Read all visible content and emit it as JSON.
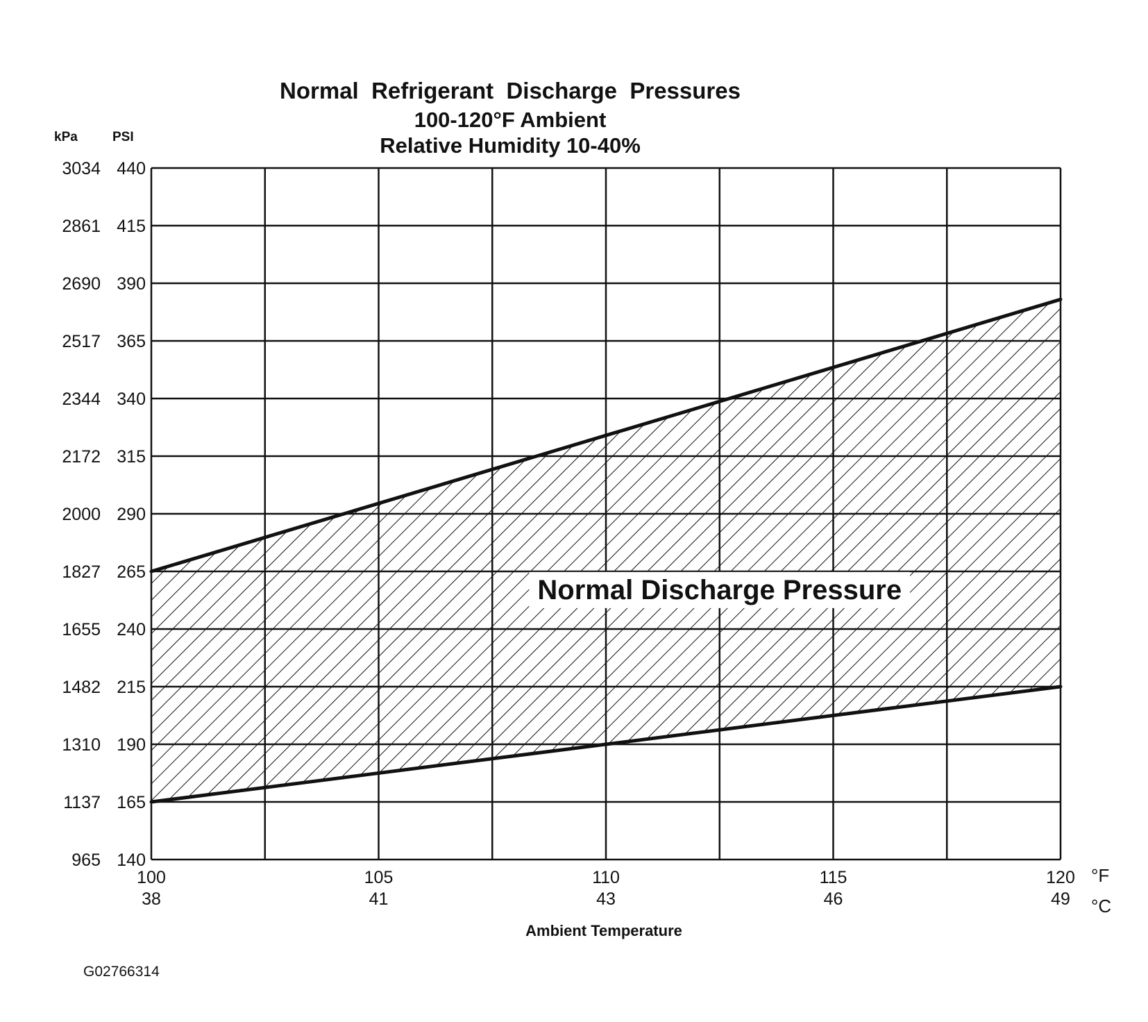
{
  "chart_data": {
    "type": "area",
    "title": "Normal  Refrigerant  Discharge  Pressures",
    "subtitle_lines": [
      "100-120°F Ambient",
      "Relative Humidity 10-40%"
    ],
    "xlabel": "Ambient Temperature",
    "x_unit_f": "°F",
    "x_unit_c": "°C",
    "y_unit_kpa": "kPa",
    "y_unit_psi": "PSI",
    "xlim": [
      100,
      120
    ],
    "ylim": [
      140,
      440
    ],
    "grid": true,
    "x_gridlines": [
      100,
      102.5,
      105,
      107.5,
      110,
      112.5,
      115,
      117.5,
      120
    ],
    "x_ticks": [
      {
        "f": "100",
        "c": "38",
        "value": 100
      },
      {
        "f": "105",
        "c": "41",
        "value": 105
      },
      {
        "f": "110",
        "c": "43",
        "value": 110
      },
      {
        "f": "115",
        "c": "46",
        "value": 115
      },
      {
        "f": "120",
        "c": "49",
        "value": 120
      }
    ],
    "y_ticks": [
      {
        "psi": "440",
        "kpa": "3034",
        "value": 440
      },
      {
        "psi": "415",
        "kpa": "2861",
        "value": 415
      },
      {
        "psi": "390",
        "kpa": "2690",
        "value": 390
      },
      {
        "psi": "365",
        "kpa": "2517",
        "value": 365
      },
      {
        "psi": "340",
        "kpa": "2344",
        "value": 340
      },
      {
        "psi": "315",
        "kpa": "2172",
        "value": 315
      },
      {
        "psi": "290",
        "kpa": "2000",
        "value": 290
      },
      {
        "psi": "265",
        "kpa": "1827",
        "value": 265
      },
      {
        "psi": "240",
        "kpa": "1655",
        "value": 240
      },
      {
        "psi": "215",
        "kpa": "1482",
        "value": 215
      },
      {
        "psi": "190",
        "kpa": "1310",
        "value": 190
      },
      {
        "psi": "165",
        "kpa": "1137",
        "value": 165
      },
      {
        "psi": "140",
        "kpa": "965",
        "value": 140
      }
    ],
    "series": [
      {
        "x": [
          100,
          120
        ],
        "values": [
          265,
          383
        ]
      },
      {
        "x": [
          100,
          120
        ],
        "values": [
          165,
          215
        ]
      }
    ],
    "band_label": "Normal Discharge Pressure",
    "band_label_position": {
      "x": 112.5,
      "y": 253
    }
  },
  "figure_id": "G02766314",
  "colors": {
    "ink": "#111111",
    "background": "#ffffff"
  }
}
